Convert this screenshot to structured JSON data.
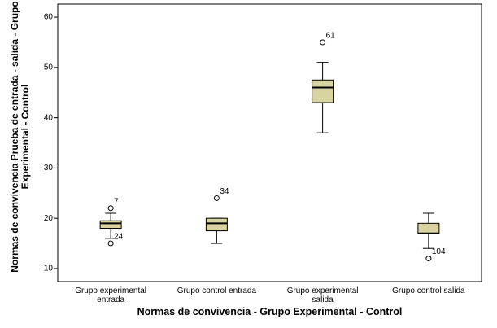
{
  "chart_data": {
    "type": "boxplot",
    "x_label": "Normas de convivencia - Grupo Experimental - Control",
    "y_label": "Normas de convivencia Prueba de entrada - salida - Grupo Experimental - Control",
    "categories": [
      "Grupo experimental entrada",
      "Grupo control entrada",
      "Grupo experimental salida",
      "Grupo control salida"
    ],
    "color": "#d8d3a0",
    "boxes": [
      {
        "whislo": 16,
        "q1": 18,
        "med": 19,
        "q3": 19.5,
        "whishi": 21,
        "outliers": [
          22,
          15
        ],
        "outlier_labels": [
          "7",
          "24"
        ]
      },
      {
        "whislo": 15,
        "q1": 17.5,
        "med": 19,
        "q3": 20,
        "whishi": 20,
        "outliers": [
          24
        ],
        "outlier_labels": [
          "34"
        ]
      },
      {
        "whislo": 37,
        "q1": 43,
        "med": 46,
        "q3": 47.5,
        "whishi": 51,
        "outliers": [
          55
        ],
        "outlier_labels": [
          "61"
        ]
      },
      {
        "whislo": 14,
        "q1": 17,
        "med": 17,
        "q3": 19,
        "whishi": 21,
        "outliers": [
          12
        ],
        "outlier_labels": [
          "104"
        ]
      }
    ],
    "ylim": [
      7.4,
      62.6
    ],
    "yticks": [
      10,
      20,
      30,
      40,
      50,
      60
    ],
    "grid": false
  }
}
